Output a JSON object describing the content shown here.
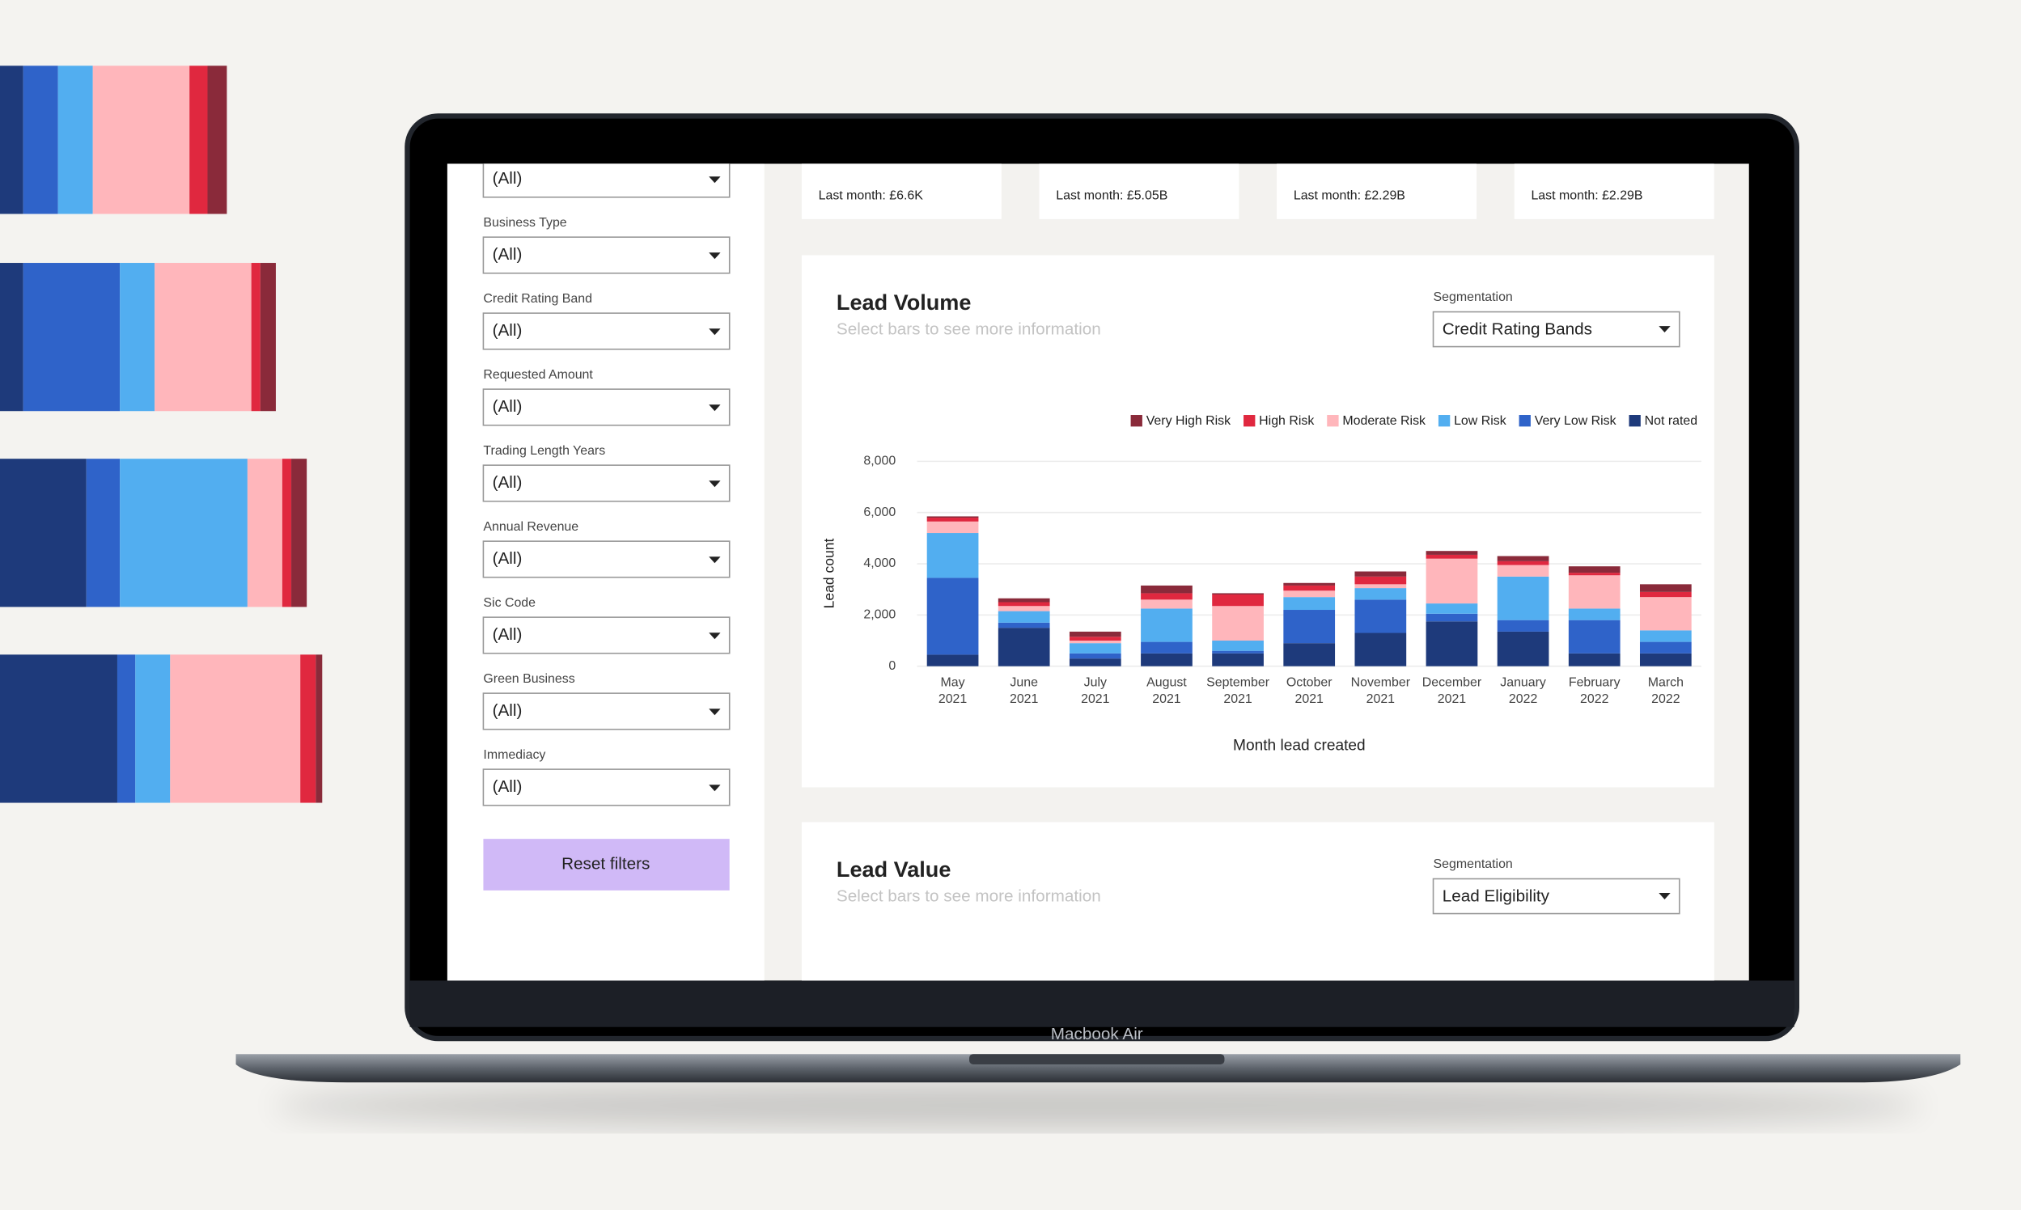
{
  "filters": [
    {
      "value": "(All)"
    },
    {
      "label": "Business Type",
      "value": "(All)"
    },
    {
      "label": "Credit Rating Band",
      "value": "(All)"
    },
    {
      "label": "Requested Amount",
      "value": "(All)"
    },
    {
      "label": "Trading Length Years",
      "value": "(All)"
    },
    {
      "label": "Annual Revenue",
      "value": "(All)"
    },
    {
      "label": "Sic Code",
      "value": "(All)"
    },
    {
      "label": "Green Business",
      "value": "(All)"
    },
    {
      "label": "Immediacy",
      "value": "(All)"
    }
  ],
  "reset_button": "Reset filters",
  "cards": [
    "Last month: £6.6K",
    "Last month: £5.05B",
    "Last month: £2.29B",
    "Last month: £2.29B"
  ],
  "lead_volume": {
    "title": "Lead Volume",
    "subtitle": "Select bars to see more information",
    "segmentation_label": "Segmentation",
    "segmentation_value": "Credit Rating Bands"
  },
  "lead_value": {
    "title": "Lead Value",
    "subtitle": "Select bars to see more information",
    "segmentation_label": "Segmentation",
    "segmentation_value": "Lead Eligibility"
  },
  "device_label": "Macbook Air",
  "chart_data": {
    "type": "stacked_bar",
    "x_label": "Month lead created",
    "y_label": "Lead count",
    "categories": [
      "May 2021",
      "June 2021",
      "July 2021",
      "August 2021",
      "September 2021",
      "October 2021",
      "November 2021",
      "December 2021",
      "January 2022",
      "February 2022",
      "March 2022"
    ],
    "series": [
      {
        "name": "Not rated",
        "color": "#1e3a7b",
        "values": [
          450,
          1500,
          300,
          500,
          500,
          900,
          1300,
          1750,
          1350,
          500,
          500
        ]
      },
      {
        "name": "Very Low Risk",
        "color": "#2f63c9",
        "values": [
          3000,
          200,
          200,
          450,
          100,
          1300,
          1300,
          300,
          450,
          1300,
          450
        ]
      },
      {
        "name": "Low Risk",
        "color": "#52aef0",
        "values": [
          1750,
          450,
          400,
          1300,
          400,
          500,
          450,
          400,
          1700,
          450,
          450
        ]
      },
      {
        "name": "Moderate Risk",
        "color": "#ffb6bb",
        "values": [
          450,
          200,
          100,
          350,
          1350,
          250,
          150,
          1750,
          450,
          1300,
          1300
        ]
      },
      {
        "name": "High Risk",
        "color": "#e0283f",
        "values": [
          150,
          150,
          150,
          250,
          450,
          200,
          300,
          150,
          150,
          100,
          200
        ]
      },
      {
        "name": "Very High Risk",
        "color": "#8a2a3a",
        "values": [
          50,
          150,
          200,
          300,
          50,
          100,
          200,
          150,
          200,
          250,
          300
        ]
      }
    ],
    "ylim": [
      0,
      8000
    ],
    "yticks": [
      0,
      {
        "value": 2000,
        "label": "2,000"
      },
      {
        "value": 4000,
        "label": "4,000"
      },
      {
        "value": 6000,
        "label": "6,000"
      },
      {
        "value": 8000,
        "label": "8,000"
      }
    ],
    "grid": true
  }
}
